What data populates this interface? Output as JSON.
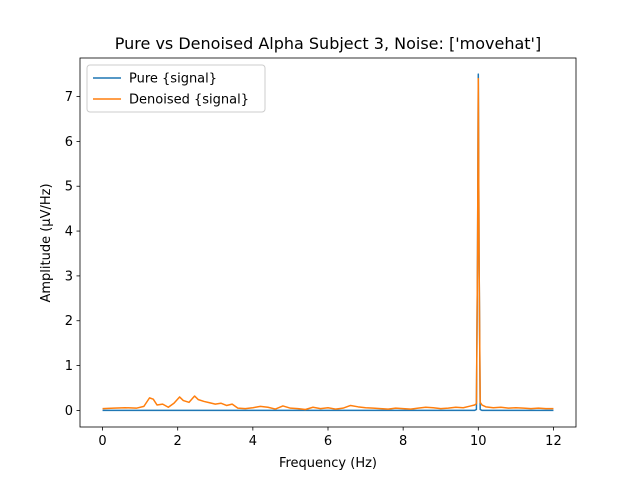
{
  "chart_data": {
    "type": "line",
    "title": "Pure vs Denoised Alpha Subject 3, Noise: ['movehat']",
    "xlabel": "Frequency (Hz)",
    "ylabel": "Amplitude (μV/Hz)",
    "xlim": [
      -0.6,
      12.6
    ],
    "ylim": [
      -0.37,
      7.86
    ],
    "xticks": [
      0,
      2,
      4,
      6,
      8,
      10,
      12
    ],
    "yticks": [
      0,
      1,
      2,
      3,
      4,
      5,
      6,
      7
    ],
    "grid": false,
    "legend_placement": "top-left",
    "series": [
      {
        "name": "Pure {signal}",
        "color": "#1f77b4",
        "x": [
          0,
          9.9,
          9.95,
          9.98,
          10.0,
          10.02,
          10.05,
          10.1,
          12
        ],
        "y": [
          0,
          0,
          0.02,
          3.5,
          7.5,
          3.5,
          0.02,
          0,
          0
        ]
      },
      {
        "name": "Denoised {signal}",
        "color": "#ff7f0e",
        "x": [
          0,
          0.3,
          0.6,
          0.9,
          1.1,
          1.25,
          1.35,
          1.45,
          1.6,
          1.75,
          1.9,
          2.05,
          2.15,
          2.3,
          2.45,
          2.55,
          2.7,
          2.85,
          3.0,
          3.15,
          3.3,
          3.45,
          3.6,
          3.8,
          4.0,
          4.2,
          4.4,
          4.6,
          4.8,
          5.0,
          5.2,
          5.4,
          5.6,
          5.8,
          6.0,
          6.2,
          6.4,
          6.6,
          6.8,
          7.0,
          7.2,
          7.4,
          7.6,
          7.8,
          8.0,
          8.2,
          8.4,
          8.6,
          8.8,
          9.0,
          9.2,
          9.4,
          9.6,
          9.8,
          9.9,
          9.95,
          9.98,
          10.0,
          10.02,
          10.05,
          10.1,
          10.2,
          10.4,
          10.6,
          10.8,
          11.0,
          11.2,
          11.4,
          11.6,
          11.8,
          12.0
        ],
        "y": [
          0.04,
          0.05,
          0.06,
          0.05,
          0.09,
          0.28,
          0.25,
          0.12,
          0.14,
          0.07,
          0.16,
          0.3,
          0.22,
          0.18,
          0.32,
          0.24,
          0.2,
          0.17,
          0.14,
          0.16,
          0.11,
          0.14,
          0.05,
          0.04,
          0.06,
          0.09,
          0.07,
          0.03,
          0.1,
          0.05,
          0.04,
          0.02,
          0.07,
          0.04,
          0.06,
          0.03,
          0.05,
          0.11,
          0.08,
          0.06,
          0.05,
          0.04,
          0.03,
          0.05,
          0.04,
          0.03,
          0.05,
          0.07,
          0.06,
          0.04,
          0.05,
          0.07,
          0.06,
          0.1,
          0.12,
          0.15,
          3.5,
          7.4,
          3.5,
          0.18,
          0.12,
          0.08,
          0.06,
          0.07,
          0.05,
          0.06,
          0.05,
          0.04,
          0.05,
          0.04,
          0.04
        ]
      }
    ]
  }
}
